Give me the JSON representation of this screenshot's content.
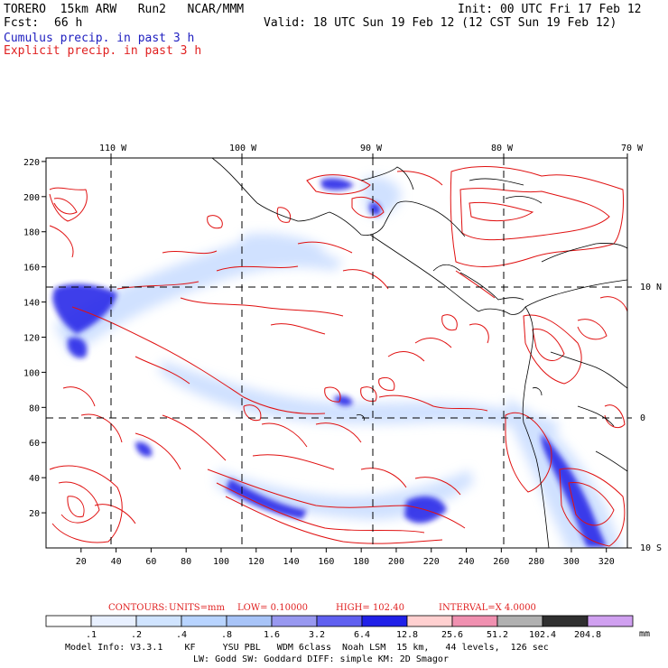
{
  "header": {
    "run_name": "TORERO  15km ARW   Run2   NCAR/MMM",
    "init": "Init: 00 UTC Fri 17 Feb 12",
    "fcst_label": "Fcst:",
    "fcst_value": "66 h",
    "valid": "Valid: 18 UTC Sun 19 Feb 12 (12 CST Sun 19 Feb 12)",
    "line1": "Cumulus precip. in past 3 h",
    "line2": "Explicit precip. in past 3 h"
  },
  "map": {
    "lon_labels": [
      "110 W",
      "100 W",
      "90 W",
      "80 W",
      "70 W"
    ],
    "lat_labels": [
      "10 N",
      "0",
      "10 S"
    ],
    "x_ticks": [
      "20",
      "40",
      "60",
      "80",
      "100",
      "120",
      "140",
      "160",
      "180",
      "200",
      "220",
      "240",
      "260",
      "280",
      "300",
      "320"
    ],
    "y_ticks": [
      "20",
      "40",
      "60",
      "80",
      "100",
      "120",
      "140",
      "160",
      "180",
      "200",
      "220"
    ],
    "colors": {
      "cumulus": "#3030e0",
      "explicit": "#e01010",
      "coast": "#000000"
    }
  },
  "contours": {
    "label": "CONTOURS:",
    "units": "UNITS=mm",
    "low": "LOW= 0.10000",
    "high": "HIGH= 102.40",
    "interval": "INTERVAL=X 4.0000"
  },
  "colorbar": {
    "labels": [
      ".1",
      ".2",
      ".4",
      ".8",
      "1.6",
      "3.2",
      "6.4",
      "12.8",
      "25.6",
      "51.2",
      "102.4",
      "204.8"
    ],
    "unit": "mm",
    "colors": [
      "#ffffff",
      "#e8f0ff",
      "#d0e4ff",
      "#b8d4ff",
      "#a8c4f8",
      "#9898f0",
      "#6060f0",
      "#2020e8",
      "#ffd0d0",
      "#f090b0",
      "#b0b0b0",
      "#303030",
      "#d0a0f0"
    ]
  },
  "footer": {
    "line1": "Model Info: V3.3.1    KF     YSU PBL   WDM 6class  Noah LSM  15 km,   44 levels,  126 sec",
    "line2": "LW: Godd SW: Goddard DIFF: simple KM: 2D Smagor"
  }
}
